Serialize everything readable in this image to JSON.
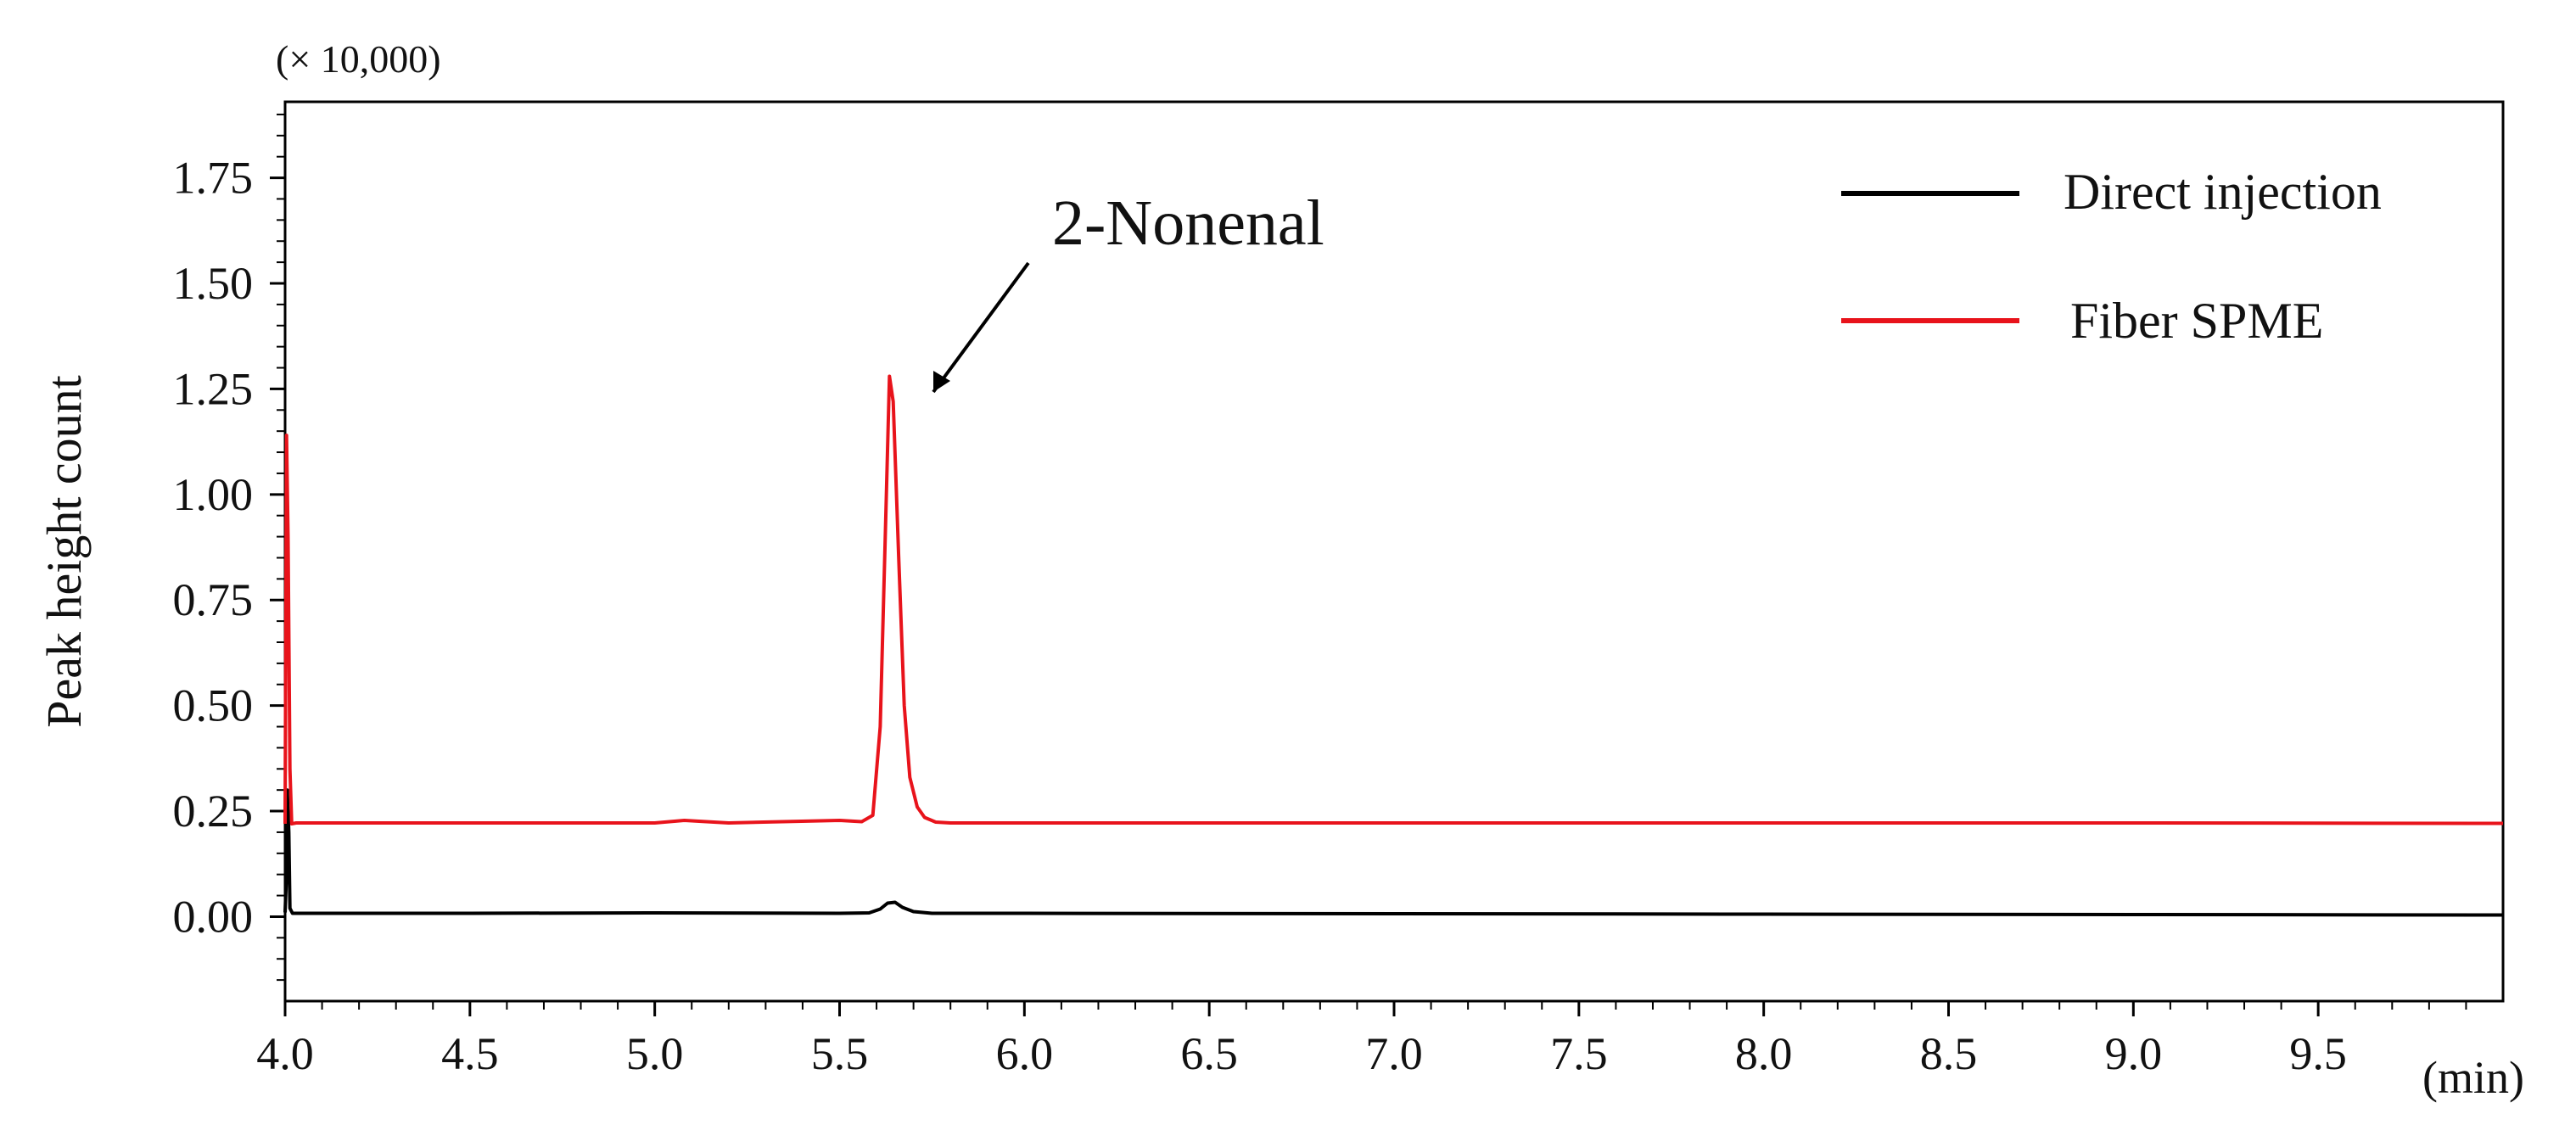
{
  "chart_data": {
    "type": "line",
    "ylabel": "Peak height count",
    "y_multiplier": "(× 10,000)",
    "x_unit": "(min)",
    "xlim": [
      4.0,
      10.0
    ],
    "ylim": [
      -0.2,
      1.93
    ],
    "xticks": [
      4.0,
      4.5,
      5.0,
      5.5,
      6.0,
      6.5,
      7.0,
      7.5,
      8.0,
      8.5,
      9.0,
      9.5
    ],
    "xtick_labels": [
      "4.0",
      "4.5",
      "5.0",
      "5.5",
      "6.0",
      "6.5",
      "7.0",
      "7.5",
      "8.0",
      "8.5",
      "9.0",
      "9.5"
    ],
    "yticks": [
      0.0,
      0.25,
      0.5,
      0.75,
      1.0,
      1.25,
      1.5,
      1.75
    ],
    "ytick_labels": [
      "0.00",
      "0.25",
      "0.50",
      "0.75",
      "1.00",
      "1.25",
      "1.50",
      "1.75"
    ],
    "legend": {
      "placement": "top-right",
      "entries": [
        "Direct injection",
        "Fiber SPME"
      ]
    },
    "annotation": {
      "text": "2-Nonenal",
      "target": [
        5.71,
        1.23
      ]
    },
    "grid": false,
    "series": [
      {
        "name": "Direct injection",
        "color": "#000000",
        "x": [
          4.0,
          4.003,
          4.006,
          4.01,
          4.013,
          4.02,
          4.05,
          4.5,
          5.0,
          5.5,
          5.58,
          5.61,
          5.63,
          5.65,
          5.67,
          5.7,
          5.75,
          6.0,
          7.0,
          8.0,
          9.0,
          10.0
        ],
        "y": [
          0.01,
          0.08,
          0.3,
          0.2,
          0.02,
          0.008,
          0.008,
          0.008,
          0.009,
          0.008,
          0.009,
          0.018,
          0.032,
          0.034,
          0.022,
          0.012,
          0.008,
          0.008,
          0.007,
          0.006,
          0.005,
          0.004
        ]
      },
      {
        "name": "Fiber SPME",
        "color": "#e8131b",
        "x": [
          4.0,
          4.004,
          4.008,
          4.013,
          4.018,
          4.03,
          4.5,
          5.0,
          5.08,
          5.12,
          5.2,
          5.5,
          5.56,
          5.59,
          5.61,
          5.625,
          5.635,
          5.645,
          5.66,
          5.675,
          5.69,
          5.71,
          5.73,
          5.76,
          5.8,
          6.0,
          7.0,
          8.0,
          9.0,
          10.0
        ],
        "y": [
          0.22,
          1.14,
          0.9,
          0.35,
          0.22,
          0.222,
          0.222,
          0.222,
          0.228,
          0.226,
          0.222,
          0.228,
          0.225,
          0.24,
          0.45,
          0.95,
          1.28,
          1.22,
          0.85,
          0.5,
          0.33,
          0.26,
          0.235,
          0.224,
          0.222,
          0.222,
          0.222,
          0.222,
          0.222,
          0.221
        ]
      }
    ]
  }
}
